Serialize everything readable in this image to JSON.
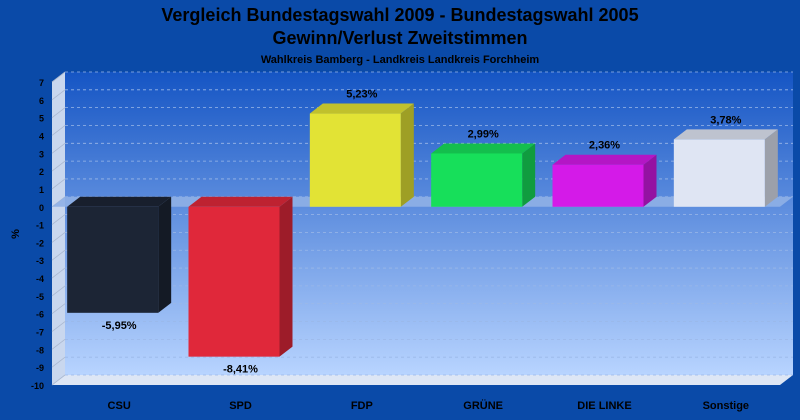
{
  "chart_data": {
    "type": "bar",
    "title": "Vergleich Bundestagswahl 2009 - Bundestagswahl 2005",
    "subtitle": "Gewinn/Verlust Zweitstimmen",
    "subsubtitle": "Wahlkreis Bamberg - Landkreis Landkreis Forchheim",
    "ylabel": "%",
    "xlabel": "",
    "ylim": [
      -10,
      7
    ],
    "yticks": [
      "7",
      "6",
      "5",
      "4",
      "3",
      "2",
      "1",
      "0",
      "-1",
      "-2",
      "-3",
      "-4",
      "-5",
      "-6",
      "-7",
      "-8",
      "-9",
      "-10"
    ],
    "grid": true,
    "categories": [
      "CSU",
      "SPD",
      "FDP",
      "GRÜNE",
      "DIE LINKE",
      "Sonstige"
    ],
    "values": [
      -5.95,
      -8.41,
      5.23,
      2.99,
      2.36,
      3.78
    ],
    "value_labels": [
      "-5,95%",
      "-8,41%",
      "5,23%",
      "2,99%",
      "2,36%",
      "3,78%"
    ],
    "colors": [
      "#1c2535",
      "#e0283a",
      "#e2e335",
      "#17df5a",
      "#d41ae8",
      "#dfe5f3"
    ]
  }
}
